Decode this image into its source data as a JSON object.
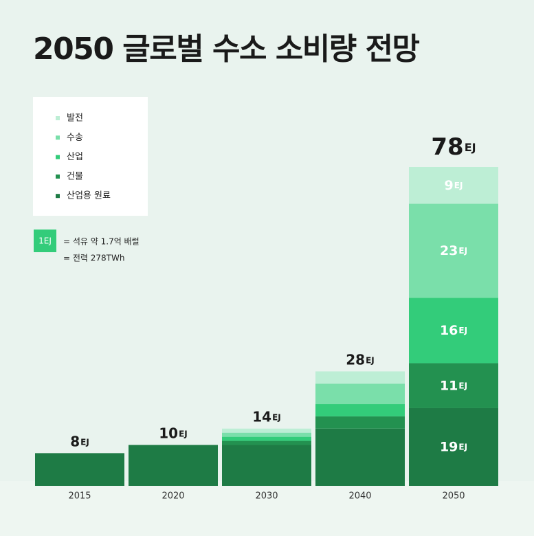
{
  "chart_data": {
    "type": "stacked_bar",
    "title": "2050 글로벌 수소 소비량 전망",
    "unit": "EJ",
    "categories": [
      "2015",
      "2020",
      "2030",
      "2040",
      "2050"
    ],
    "series": [
      {
        "name": "산업용 원료",
        "color": "#1e7b45",
        "values": [
          8,
          10,
          10,
          14,
          19
        ]
      },
      {
        "name": "건물",
        "color": "#239150",
        "values": [
          0,
          0,
          1,
          3,
          11
        ]
      },
      {
        "name": "산업",
        "color": "#33cc7a",
        "values": [
          0,
          0,
          1,
          3,
          16
        ]
      },
      {
        "name": "수송",
        "color": "#7adfaa",
        "values": [
          0,
          0,
          1,
          5,
          23
        ]
      },
      {
        "name": "발전",
        "color": "#bdeed5",
        "values": [
          0,
          0,
          1,
          3,
          9
        ]
      }
    ],
    "totals": [
      8,
      10,
      14,
      28,
      78
    ],
    "show_values": [
      false,
      false,
      false,
      false,
      true
    ],
    "note": {
      "badge": "1EJ",
      "lines": [
        "= 석유 약 1.7억 배럴",
        "= 전력 278TWh"
      ]
    }
  }
}
